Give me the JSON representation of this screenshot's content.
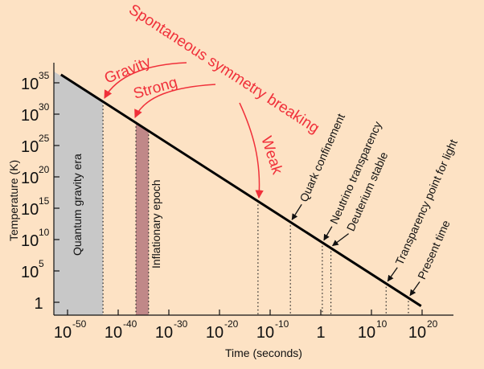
{
  "chart_data": {
    "type": "line",
    "xlabel": "Time (seconds)",
    "ylabel": "Temperature (K)",
    "x_scale": "log",
    "y_scale": "log",
    "x_ticks": [
      {
        "exp": -50,
        "base": "10",
        "sup": "-50"
      },
      {
        "exp": -40,
        "base": "10",
        "sup": "-40"
      },
      {
        "exp": -30,
        "base": "10",
        "sup": "-30"
      },
      {
        "exp": -20,
        "base": "10",
        "sup": "-20"
      },
      {
        "exp": -10,
        "base": "10",
        "sup": "-10"
      },
      {
        "exp": 0,
        "base": "1",
        "sup": ""
      },
      {
        "exp": 10,
        "base": "10",
        "sup": "10"
      },
      {
        "exp": 20,
        "base": "10",
        "sup": "20"
      }
    ],
    "y_ticks": [
      {
        "exp": 0,
        "base": "1",
        "sup": ""
      },
      {
        "exp": 5,
        "base": "10",
        "sup": "5"
      },
      {
        "exp": 10,
        "base": "10",
        "sup": "10"
      },
      {
        "exp": 15,
        "base": "10",
        "sup": "15"
      },
      {
        "exp": 20,
        "base": "10",
        "sup": "20"
      },
      {
        "exp": 25,
        "base": "10",
        "sup": "25"
      },
      {
        "exp": 30,
        "base": "10",
        "sup": "30"
      },
      {
        "exp": 35,
        "base": "10",
        "sup": "35"
      }
    ],
    "series": [
      {
        "points": [
          {
            "log_t": -51.3,
            "log_T": 36.3
          },
          {
            "log_t": 19.8,
            "log_T": -0.6
          }
        ]
      }
    ],
    "regions": [
      {
        "label": "Quantum gravity era",
        "log_t_from": -53,
        "log_t_to": -43,
        "color": "#c8c8c8"
      },
      {
        "label": "Inflationary epoch",
        "log_t_from": -36.5,
        "log_t_to": -34,
        "color": "#c08888"
      }
    ],
    "events": [
      {
        "label": "Quark confinement",
        "log_t": -6
      },
      {
        "label": "Neutrino transparency",
        "log_t": 0.3
      },
      {
        "label": "Deuterium stable",
        "log_t": 2
      },
      {
        "label": "Transparency point for light",
        "log_t": 12.9
      },
      {
        "label": "Present time",
        "log_t": 17.3
      }
    ],
    "symmetry_breaking": {
      "title": "Spontaneous symmetry breaking",
      "forces": [
        {
          "label": "Gravity",
          "log_t": -43
        },
        {
          "label": "Strong",
          "log_t": -36.5
        },
        {
          "label": "Weak",
          "log_t": -12.4
        }
      ]
    },
    "colors": {
      "background": "#fde2c4",
      "annotation": "#f0303a",
      "line": "#000000"
    }
  }
}
